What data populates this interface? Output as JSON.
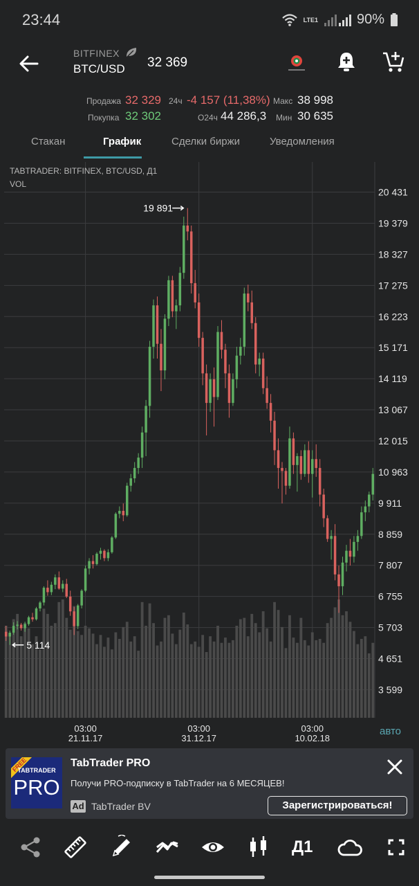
{
  "status_bar": {
    "time": "23:44",
    "network": "LTE1",
    "battery": "90%",
    "icons": [
      "wifi-icon",
      "signal-icon",
      "battery-icon"
    ]
  },
  "header": {
    "exchange": "BITFINEX",
    "pair": "BTC/USD",
    "price": "32 369",
    "icons": [
      "back-arrow-icon",
      "leaf-icon",
      "tabtrader-logo-icon",
      "add-alert-icon",
      "add-to-cart-icon"
    ]
  },
  "stats": {
    "sell_label": "Продажа",
    "sell_value": "32 329",
    "buy_label": "Покупка",
    "buy_value": "32 302",
    "change_label": "24ч",
    "change_value": "-4 157 (11,38%)",
    "volume_label": "О24ч",
    "volume_value": "44 286,3",
    "max_label": "Макс",
    "max_value": "38 998",
    "min_label": "Мин",
    "min_value": "30 635"
  },
  "tabs": [
    {
      "label": "Стакан",
      "active": false
    },
    {
      "label": "График",
      "active": true
    },
    {
      "label": "Сделки биржи",
      "active": false
    },
    {
      "label": "Уведомления",
      "active": false
    }
  ],
  "chart": {
    "title": "TABTRADER: BITFINEX, BTC/USD, Д1",
    "volume_label": "VOL",
    "auto_label": "авто"
  },
  "chart_data": {
    "type": "candlestick",
    "y_ticks": [
      20431,
      19379,
      18327,
      17275,
      16223,
      15171,
      14119,
      13067,
      12015,
      10963,
      9911,
      8859,
      7807,
      6755,
      5703,
      4651,
      3599
    ],
    "y_tick_labels": [
      "20 431",
      "19 379",
      "18 327",
      "17 275",
      "16 223",
      "15 171",
      "14 119",
      "13 067",
      "12 015",
      "10 963",
      "9 911",
      "8 859",
      "7 807",
      "6 755",
      "5 703",
      "4 651",
      "3 599"
    ],
    "ylim": [
      2650,
      21450
    ],
    "x_ticks": [
      {
        "time": "03:00",
        "date": "21.11.17"
      },
      {
        "time": "03:00",
        "date": "31.12.17"
      },
      {
        "time": "03:00",
        "date": "10.02.18"
      }
    ],
    "high_annotation": "19 891",
    "low_annotation": "5 114",
    "up_color": "#5fae62",
    "down_color": "#d9625e",
    "volume_color": "#4a4a4a",
    "candles": [
      [
        5560,
        5760,
        5250,
        5400
      ],
      [
        5400,
        5600,
        5114,
        5530
      ],
      [
        5530,
        5880,
        5460,
        5760
      ],
      [
        5760,
        5920,
        5640,
        5800
      ],
      [
        5800,
        5860,
        5600,
        5680
      ],
      [
        5680,
        5900,
        5560,
        5820
      ],
      [
        5820,
        6100,
        5760,
        6050
      ],
      [
        6050,
        6200,
        5900,
        5980
      ],
      [
        5980,
        6400,
        5940,
        6350
      ],
      [
        6350,
        6600,
        6250,
        6550
      ],
      [
        6550,
        7100,
        6450,
        7050
      ],
      [
        7050,
        7300,
        6780,
        6900
      ],
      [
        6900,
        7250,
        6800,
        7150
      ],
      [
        7150,
        7500,
        7000,
        7400
      ],
      [
        7400,
        7600,
        6980,
        7020
      ],
      [
        7020,
        7300,
        6900,
        7180
      ],
      [
        7180,
        7350,
        6700,
        6750
      ],
      [
        6750,
        6950,
        6100,
        6250
      ],
      [
        6250,
        6400,
        5450,
        5750
      ],
      [
        5750,
        6500,
        5650,
        6450
      ],
      [
        6450,
        7000,
        6350,
        6950
      ],
      [
        6950,
        7800,
        6900,
        7700
      ],
      [
        7700,
        8050,
        7500,
        7950
      ],
      [
        7950,
        8150,
        7700,
        7850
      ],
      [
        7850,
        8250,
        7800,
        8200
      ],
      [
        8200,
        8400,
        8000,
        8300
      ],
      [
        8300,
        8350,
        7950,
        8050
      ],
      [
        8050,
        8350,
        7950,
        8250
      ],
      [
        8250,
        8800,
        8200,
        8750
      ],
      [
        8750,
        9600,
        8700,
        9550
      ],
      [
        9550,
        9800,
        9400,
        9650
      ],
      [
        9650,
        9900,
        9300,
        9500
      ],
      [
        9500,
        10600,
        9450,
        10500
      ],
      [
        10500,
        10900,
        10300,
        10750
      ],
      [
        10750,
        11300,
        10600,
        11100
      ],
      [
        11100,
        11600,
        10900,
        11450
      ],
      [
        11450,
        12500,
        11100,
        12300
      ],
      [
        12300,
        13400,
        11500,
        13200
      ],
      [
        13200,
        15400,
        12800,
        15200
      ],
      [
        15200,
        16800,
        14800,
        16600
      ],
      [
        16600,
        16900,
        14800,
        15300
      ],
      [
        15300,
        15800,
        13700,
        14400
      ],
      [
        14400,
        16300,
        14100,
        16150
      ],
      [
        16150,
        17600,
        15900,
        17450
      ],
      [
        17450,
        17600,
        16200,
        16400
      ],
      [
        16400,
        16800,
        15800,
        16600
      ],
      [
        16600,
        17900,
        16400,
        17700
      ],
      [
        17700,
        19600,
        17500,
        19300
      ],
      [
        19300,
        19891,
        18800,
        19100
      ],
      [
        19100,
        19300,
        17000,
        17350
      ],
      [
        17350,
        17800,
        16500,
        16700
      ],
      [
        16700,
        17000,
        15200,
        15500
      ],
      [
        15500,
        15700,
        13900,
        14300
      ],
      [
        14300,
        14600,
        12200,
        13300
      ],
      [
        13300,
        14300,
        13000,
        14100
      ],
      [
        14100,
        14500,
        12500,
        13500
      ],
      [
        13500,
        15900,
        13400,
        15700
      ],
      [
        15700,
        16100,
        14800,
        15100
      ],
      [
        15100,
        15300,
        13800,
        14300
      ],
      [
        14300,
        14600,
        12800,
        13300
      ],
      [
        13300,
        14300,
        13200,
        14100
      ],
      [
        14100,
        15200,
        13800,
        14900
      ],
      [
        14900,
        15500,
        14600,
        15200
      ],
      [
        15200,
        17200,
        14900,
        17000
      ],
      [
        17000,
        17300,
        16400,
        16700
      ],
      [
        16700,
        17100,
        15800,
        16000
      ],
      [
        16000,
        16200,
        14300,
        14600
      ],
      [
        14600,
        15000,
        14200,
        14800
      ],
      [
        14800,
        15000,
        13600,
        13800
      ],
      [
        13800,
        14200,
        13100,
        13300
      ],
      [
        13300,
        13600,
        12300,
        12700
      ],
      [
        12700,
        13000,
        11200,
        11700
      ],
      [
        11700,
        12100,
        10400,
        11100
      ],
      [
        11100,
        11300,
        9900,
        11000
      ],
      [
        11000,
        11100,
        10200,
        10500
      ],
      [
        10500,
        12500,
        10400,
        12100
      ],
      [
        12100,
        12300,
        10900,
        11200
      ],
      [
        11200,
        11600,
        10300,
        11500
      ],
      [
        11500,
        11700,
        10700,
        10900
      ],
      [
        10900,
        11900,
        10800,
        11700
      ],
      [
        11700,
        12000,
        10600,
        10900
      ],
      [
        10900,
        11700,
        10100,
        11400
      ],
      [
        11400,
        11900,
        10800,
        11100
      ],
      [
        11100,
        11400,
        9800,
        10200
      ],
      [
        10200,
        10400,
        9100,
        9400
      ],
      [
        9400,
        9500,
        8600,
        8700
      ],
      [
        8700,
        9000,
        8000,
        8800
      ],
      [
        8800,
        9200,
        7300,
        7500
      ],
      [
        7500,
        7800,
        6200,
        7100
      ],
      [
        7100,
        8100,
        6800,
        7900
      ],
      [
        7900,
        8500,
        7600,
        8300
      ],
      [
        8300,
        8700,
        7800,
        8100
      ],
      [
        8100,
        8800,
        7900,
        8600
      ],
      [
        8600,
        9000,
        8300,
        8800
      ],
      [
        8800,
        9800,
        8700,
        9600
      ],
      [
        9600,
        10000,
        9300,
        9800
      ],
      [
        9800,
        10300,
        9600,
        10200
      ],
      [
        10200,
        11100,
        10000,
        10900
      ]
    ],
    "volumes": [
      0.7,
      0.64,
      0.75,
      0.79,
      0.62,
      0.72,
      0.68,
      0.56,
      0.62,
      0.52,
      0.83,
      0.79,
      0.7,
      0.72,
      0.88,
      0.9,
      0.76,
      0.67,
      0.85,
      0.66,
      0.63,
      0.7,
      0.68,
      0.64,
      0.56,
      0.63,
      0.54,
      0.61,
      0.52,
      0.65,
      0.6,
      0.69,
      0.73,
      0.58,
      0.62,
      0.51,
      0.88,
      0.7,
      0.87,
      0.72,
      0.55,
      0.58,
      0.76,
      0.78,
      0.64,
      0.56,
      0.67,
      0.8,
      0.71,
      0.56,
      0.58,
      0.54,
      0.63,
      0.5,
      0.62,
      0.58,
      0.7,
      0.57,
      0.61,
      0.57,
      0.59,
      0.7,
      0.75,
      0.76,
      0.62,
      0.79,
      0.72,
      0.65,
      0.81,
      0.68,
      0.58,
      0.88,
      0.82,
      0.69,
      0.53,
      0.78,
      0.61,
      0.57,
      0.76,
      0.59,
      0.55,
      0.65,
      0.59,
      0.6,
      0.57,
      0.72,
      0.76,
      0.84,
      0.9,
      0.78,
      0.81,
      0.73,
      0.66,
      0.56,
      0.6,
      0.62,
      0.49,
      0.57
    ]
  },
  "ad": {
    "badge": "FREE",
    "logo_top": "TABTRADER",
    "logo_main": "PRO",
    "title": "TabTrader PRO",
    "text": "Получи PRO-подписку в TabTrader на 6 МЕСЯЦЕВ!",
    "ad_badge": "Ad",
    "advertiser": "TabTrader BV",
    "cta": "Зарегистрироваться!"
  },
  "toolbar": {
    "timeframe": "Д1",
    "icons": [
      "share-icon",
      "ruler-icon",
      "pencil-icon",
      "indicators-icon",
      "eye-icon",
      "candles-icon",
      "cloud-icon",
      "fullscreen-icon"
    ]
  }
}
